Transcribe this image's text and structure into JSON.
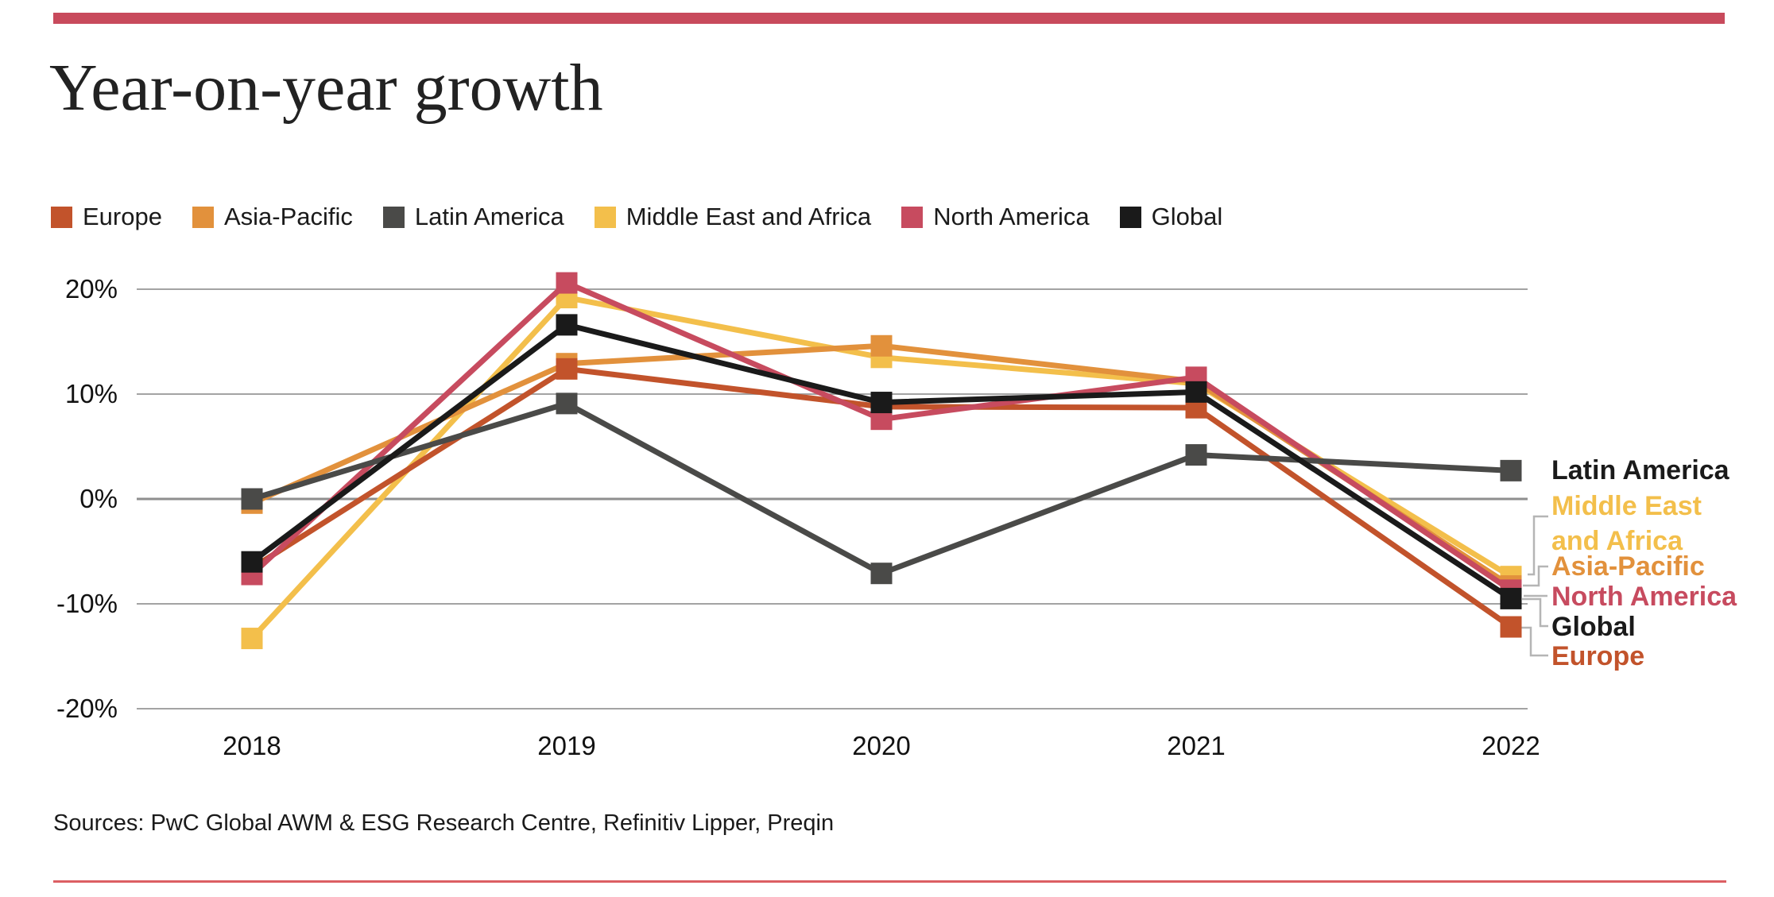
{
  "page": {
    "title": "Year-on-year growth",
    "sources": "Sources: PwC Global AWM & ESG Research Centre, Refinitiv Lipper, Preqin"
  },
  "accent": {
    "top_bar_color": "#C84A5C",
    "bottom_rule_color": "#DC5F63",
    "grid_color": "#A3A3A3",
    "zero_line_color": "#8E8E8E",
    "connector_color": "#B5B5B5",
    "text_color": "#1A1A1A"
  },
  "chart_data": {
    "type": "line",
    "title": "Year-on-year growth",
    "x": [
      "2018",
      "2019",
      "2020",
      "2021",
      "2022"
    ],
    "y_ticks": [
      {
        "label": "20%",
        "value": 20
      },
      {
        "label": "10%",
        "value": 10
      },
      {
        "label": "0%",
        "value": 0
      },
      {
        "label": "-10%",
        "value": -10
      },
      {
        "label": "-20%",
        "value": -20
      }
    ],
    "ylim": [
      -20,
      20
    ],
    "unit": "%",
    "grid": true,
    "marker": "square",
    "legend_position": "top-left",
    "series": [
      {
        "name": "Europe",
        "color": "#C2532B",
        "values": [
          -6.6,
          12.4,
          8.8,
          8.7,
          -12.2
        ]
      },
      {
        "name": "Asia-Pacific",
        "color": "#E2913C",
        "values": [
          -0.4,
          12.9,
          14.6,
          11.2,
          -8.3
        ]
      },
      {
        "name": "Latin America",
        "color": "#4A4A48",
        "values": [
          0.0,
          9.1,
          -7.1,
          4.2,
          2.7
        ]
      },
      {
        "name": "Middle East and Africa",
        "color": "#F3BF4B",
        "values": [
          -13.3,
          19.2,
          13.5,
          11.0,
          -7.4
        ]
      },
      {
        "name": "North America",
        "color": "#C74B5F",
        "values": [
          -7.2,
          20.6,
          7.6,
          11.6,
          -8.7
        ]
      },
      {
        "name": "Global",
        "color": "#1A1A1A",
        "values": [
          -6.0,
          16.6,
          9.2,
          10.2,
          -9.5
        ]
      }
    ],
    "end_labels": [
      {
        "series": "Latin America",
        "lines": [
          "Latin America"
        ],
        "color": "#1A1A1A"
      },
      {
        "series": "Middle East and Africa",
        "lines": [
          "Middle East",
          "and Africa"
        ],
        "color": "#F3BF4B"
      },
      {
        "series": "Asia-Pacific",
        "lines": [
          "Asia-Pacific"
        ],
        "color": "#E2913C"
      },
      {
        "series": "North America",
        "lines": [
          "North America"
        ],
        "color": "#C74B5F"
      },
      {
        "series": "Global",
        "lines": [
          "Global"
        ],
        "color": "#1A1A1A"
      },
      {
        "series": "Europe",
        "lines": [
          "Europe"
        ],
        "color": "#C2532B"
      }
    ]
  }
}
